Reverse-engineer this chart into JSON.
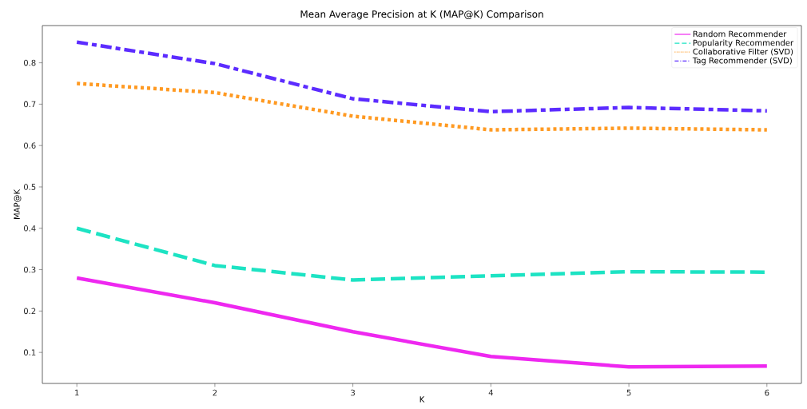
{
  "chart_data": {
    "type": "line",
    "title": "Mean Average Precision at K (MAP@K) Comparison",
    "xlabel": "K",
    "ylabel": "MAP@K",
    "x": [
      1,
      2,
      3,
      4,
      5,
      6
    ],
    "series": [
      {
        "name": "Random Recommender",
        "color": "#ee28f0",
        "line_style": "solid",
        "values": [
          0.28,
          0.22,
          0.15,
          0.09,
          0.065,
          0.067
        ]
      },
      {
        "name": "Popularity Recommender",
        "color": "#1de3c3",
        "line_style": "dashed",
        "values": [
          0.4,
          0.31,
          0.275,
          0.285,
          0.295,
          0.294
        ]
      },
      {
        "name": "Collaborative Filter (SVD)",
        "color": "#ff9a22",
        "line_style": "dotted",
        "values": [
          0.75,
          0.728,
          0.671,
          0.638,
          0.642,
          0.638
        ]
      },
      {
        "name": "Tag Recommender (SVD)",
        "color": "#5c2cff",
        "line_style": "dashdot",
        "values": [
          0.85,
          0.798,
          0.713,
          0.682,
          0.692,
          0.684
        ]
      }
    ],
    "xlim": [
      0.75,
      6.25
    ],
    "ylim": [
      0.025,
      0.89
    ],
    "xticks": [
      1,
      2,
      3,
      4,
      5,
      6
    ],
    "yticks": [
      0.1,
      0.2,
      0.3,
      0.4,
      0.5,
      0.6,
      0.7,
      0.8
    ],
    "grid": false,
    "legend": "top right",
    "marker": "none"
  }
}
